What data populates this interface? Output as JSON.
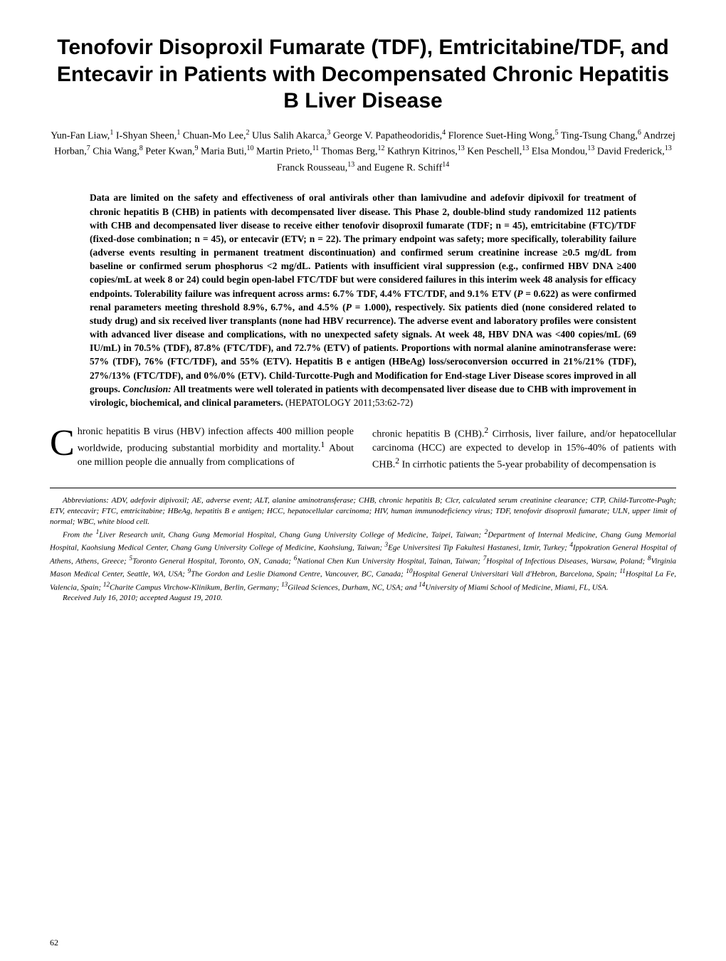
{
  "title": "Tenofovir Disoproxil Fumarate (TDF), Emtricitabine/TDF, and Entecavir in Patients with Decompensated Chronic Hepatitis B Liver Disease",
  "authors_html": "Yun-Fan Liaw,<sup>1</sup> I-Shyan Sheen,<sup>1</sup> Chuan-Mo Lee,<sup>2</sup> Ulus Salih Akarca,<sup>3</sup> George V. Papatheodoridis,<sup>4</sup> Florence Suet-Hing Wong,<sup>5</sup> Ting-Tsung Chang,<sup>6</sup> Andrzej Horban,<sup>7</sup> Chia Wang,<sup>8</sup> Peter Kwan,<sup>9</sup> Maria Buti,<sup>10</sup> Martin Prieto,<sup>11</sup> Thomas Berg,<sup>12</sup> Kathryn Kitrinos,<sup>13</sup> Ken Peschell,<sup>13</sup> Elsa Mondou,<sup>13</sup> David Frederick,<sup>13</sup> Franck Rousseau,<sup>13</sup> and Eugene R. Schiff<sup>14</sup>",
  "abstract_html": "Data are limited on the safety and effectiveness of oral antivirals other than lamivudine and adefovir dipivoxil for treatment of chronic hepatitis B (CHB) in patients with decompensated liver disease. This Phase 2, double-blind study randomized 112 patients with CHB and decompensated liver disease to receive either tenofovir disoproxil fumarate (TDF; n = 45), emtricitabine (FTC)/TDF (fixed-dose combination; n = 45), or entecavir (ETV; n = 22). The primary endpoint was safety; more specifically, tolerability failure (adverse events resulting in permanent treatment discontinuation) and confirmed serum creatinine increase ≥0.5 mg/dL from baseline or confirmed serum phosphorus &lt;2 mg/dL. Patients with insufficient viral suppression (e.g., confirmed HBV DNA ≥400 copies/mL at week 8 or 24) could begin open-label FTC/TDF but were considered failures in this interim week 48 analysis for efficacy endpoints. Tolerability failure was infrequent across arms: 6.7% TDF, 4.4% FTC/TDF, and 9.1% ETV (<i>P</i> = 0.622) as were confirmed renal parameters meeting threshold 8.9%, 6.7%, and 4.5% (<i>P</i> = 1.000), respectively. Six patients died (none considered related to study drug) and six received liver transplants (none had HBV recurrence). The adverse event and laboratory profiles were consistent with advanced liver disease and complications, with no unexpected safety signals. At week 48, HBV DNA was &lt;400 copies/mL (69 IU/mL) in 70.5% (TDF), 87.8% (FTC/TDF), and 72.7% (ETV) of patients. Proportions with normal alanine aminotransferase were: 57% (TDF), 76% (FTC/TDF), and 55% (ETV). Hepatitis B e antigen (HBeAg) loss/seroconversion occurred in 21%/21% (TDF), 27%/13% (FTC/TDF), and 0%/0% (ETV). Child-Turcotte-Pugh and Modification for End-stage Liver Disease scores improved in all groups. <i>Conclusion:</i> All treatments were well tolerated in patients with decompensated liver disease due to CHB with improvement in virologic, biochemical, and clinical parameters. <span class=\"not-bold\">(H<span class=\"smallcaps\">EPATOLOGY</span> 2011;53:62-72)</span>",
  "body": {
    "col1_html": "<span class=\"dropcap\">C</span>hronic hepatitis B virus (HBV) infection affects 400 million people worldwide, producing substantial morbidity and mortality.<sup>1</sup> About one million people die annually from complications of",
    "col2_html": "chronic hepatitis B (CHB).<sup>2</sup> Cirrhosis, liver failure, and/or hepatocellular carcinoma (HCC) are expected to develop in 15%-40% of patients with CHB.<sup>2</sup> In cirrhotic patients the 5-year probability of decompensation is"
  },
  "footer": {
    "abbrev": "Abbreviations: ADV, adefovir dipivoxil; AE, adverse event; ALT, alanine aminotransferase; CHB, chronic hepatitis B; Clcr, calculated serum creatinine clearance; CTP, Child-Turcotte-Pugh; ETV, entecavir; FTC, emtricitabine; HBeAg, hepatitis B e antigen; HCC, hepatocellular carcinoma; HIV, human immunodeficiency virus; TDF, tenofovir disoproxil fumarate; ULN, upper limit of normal; WBC, white blood cell.",
    "from_html": "From the <sup>1</sup>Liver Research unit, Chang Gung Memorial Hospital, Chang Gung University College of Medicine, Taipei, Taiwan; <sup>2</sup>Department of Internal Medicine, Chang Gung Memorial Hospital, Kaohsiung Medical Center, Chang Gung University College of Medicine, Kaohsiung, Taiwan; <sup>3</sup>Ege Universitesi Tip Fakultesi Hastanesi, Izmir, Turkey; <sup>4</sup>Ippokration General Hospital of Athens, Athens, Greece; <sup>5</sup>Toronto General Hospital, Toronto, ON, Canada; <sup>6</sup>National Chen Kun University Hospital, Tainan, Taiwan; <sup>7</sup>Hospital of Infectious Diseases, Warsaw, Poland; <sup>8</sup>Virginia Mason Medical Center, Seattle, WA, USA; <sup>9</sup>The Gordon and Leslie Diamond Centre, Vancouver, BC, Canada; <sup>10</sup>Hospital General Universitari Vall d'Hebron, Barcelona, Spain; <sup>11</sup>Hospital La Fe, Valencia, Spain; <sup>12</sup>Charite Campus Virchow-Klinikum, Berlin, Germany; <sup>13</sup>Gilead Sciences, Durham, NC, USA; and <sup>14</sup>University of Miami School of Medicine, Miami, FL, USA.",
    "received": "Received July 16, 2010; accepted August 19, 2010."
  },
  "page_number": "62"
}
